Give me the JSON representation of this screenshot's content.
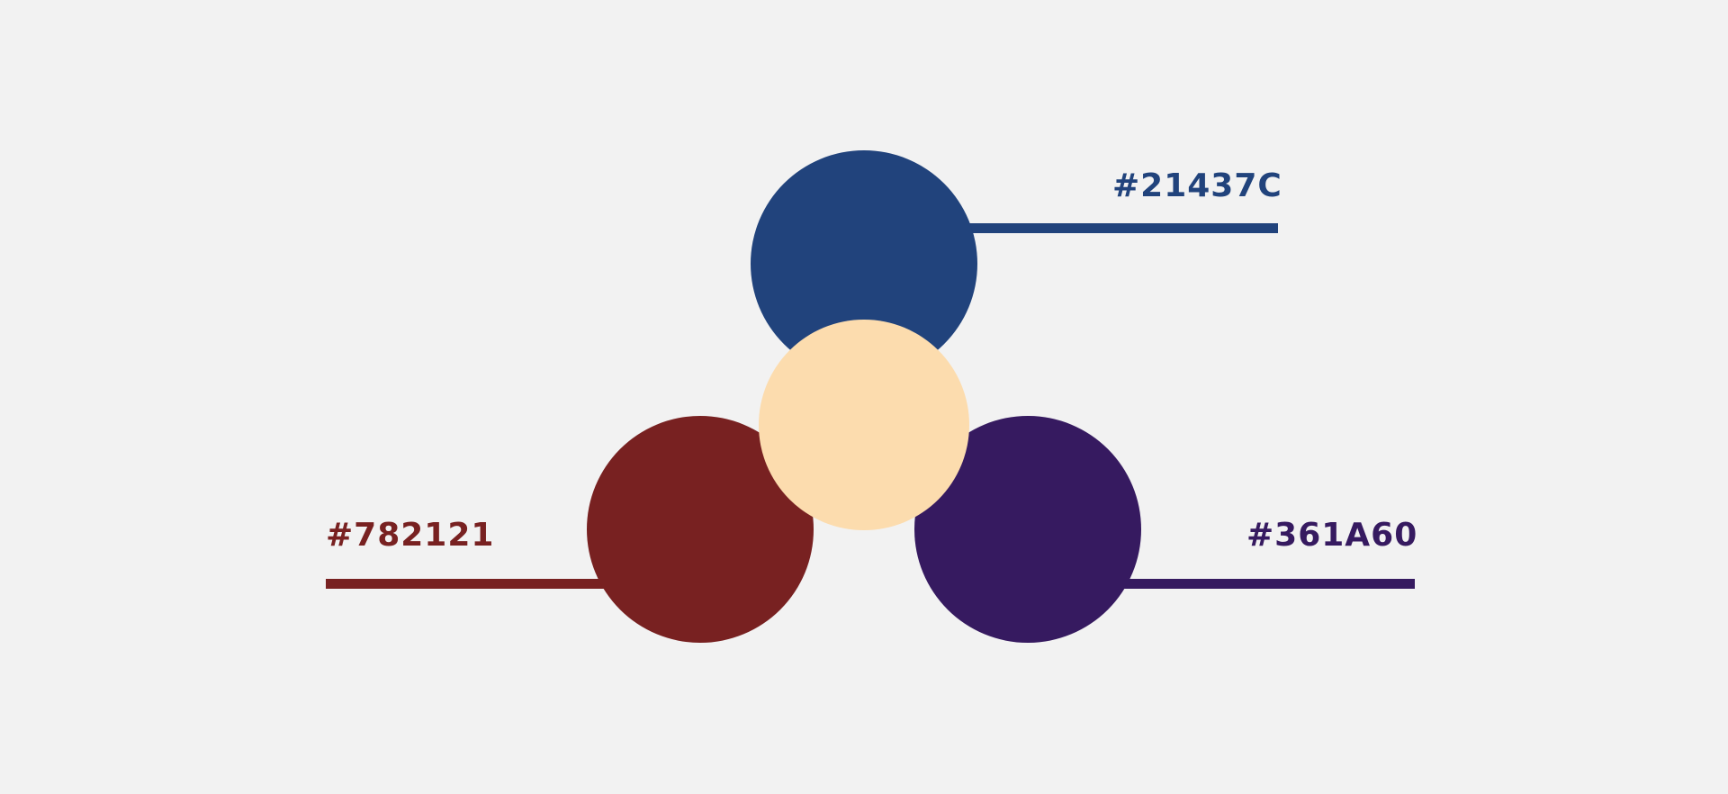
{
  "background_color": "#F2F2F2",
  "palette": {
    "blue": {
      "hex_label": "#21437C",
      "color": "#21437C"
    },
    "red": {
      "hex_label": "#782121",
      "color": "#782121"
    },
    "purple": {
      "hex_label": "#361A60",
      "color": "#361A60"
    },
    "center": {
      "color": "#FCDCAE"
    }
  }
}
